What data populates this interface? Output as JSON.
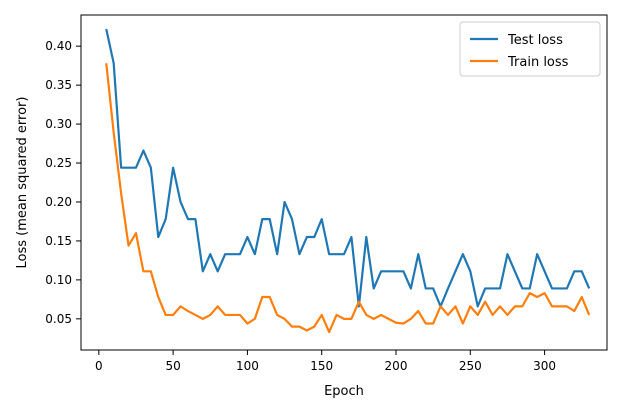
{
  "chart_data": {
    "type": "line",
    "xlabel": "Epoch",
    "ylabel": "Loss (mean squared error)",
    "xlim": [
      -12,
      342
    ],
    "ylim": [
      0.01,
      0.44
    ],
    "xticks": [
      0,
      50,
      100,
      150,
      200,
      250,
      300
    ],
    "xtick_labels": [
      "0",
      "50",
      "100",
      "150",
      "200",
      "250",
      "300"
    ],
    "yticks": [
      0.05,
      0.1,
      0.15,
      0.2,
      0.25,
      0.3,
      0.35,
      0.4
    ],
    "ytick_labels": [
      "0.05",
      "0.10",
      "0.15",
      "0.20",
      "0.25",
      "0.30",
      "0.35",
      "0.40"
    ],
    "grid": false,
    "legend_position": "top-right",
    "x": [
      5,
      10,
      15,
      20,
      25,
      30,
      35,
      40,
      45,
      50,
      55,
      60,
      65,
      70,
      75,
      80,
      85,
      90,
      95,
      100,
      105,
      110,
      115,
      120,
      125,
      130,
      135,
      140,
      145,
      150,
      155,
      160,
      165,
      170,
      175,
      180,
      185,
      190,
      195,
      200,
      205,
      210,
      215,
      220,
      225,
      230,
      235,
      240,
      245,
      250,
      255,
      260,
      265,
      270,
      275,
      280,
      285,
      290,
      295,
      300,
      305,
      310,
      315,
      320,
      325,
      330
    ],
    "series": [
      {
        "name": "Test loss",
        "color": "#1f77b4",
        "values": [
          0.422,
          0.378,
          0.244,
          0.244,
          0.244,
          0.266,
          0.244,
          0.155,
          0.178,
          0.244,
          0.2,
          0.178,
          0.178,
          0.111,
          0.133,
          0.111,
          0.133,
          0.133,
          0.133,
          0.155,
          0.133,
          0.178,
          0.178,
          0.133,
          0.2,
          0.178,
          0.133,
          0.155,
          0.155,
          0.178,
          0.133,
          0.133,
          0.133,
          0.155,
          0.066,
          0.155,
          0.089,
          0.111,
          0.111,
          0.111,
          0.111,
          0.089,
          0.133,
          0.089,
          0.089,
          0.066,
          0.089,
          0.111,
          0.133,
          0.111,
          0.066,
          0.089,
          0.089,
          0.089,
          0.133,
          0.111,
          0.089,
          0.089,
          0.133,
          0.111,
          0.089,
          0.089,
          0.089,
          0.111,
          0.111,
          0.089
        ]
      },
      {
        "name": "Train loss",
        "color": "#ff7f0e",
        "values": [
          0.378,
          0.289,
          0.211,
          0.144,
          0.16,
          0.111,
          0.111,
          0.078,
          0.055,
          0.055,
          0.066,
          0.06,
          0.055,
          0.05,
          0.055,
          0.066,
          0.055,
          0.055,
          0.055,
          0.044,
          0.05,
          0.078,
          0.078,
          0.055,
          0.05,
          0.04,
          0.04,
          0.035,
          0.04,
          0.055,
          0.033,
          0.055,
          0.05,
          0.05,
          0.072,
          0.055,
          0.05,
          0.055,
          0.05,
          0.045,
          0.044,
          0.05,
          0.06,
          0.044,
          0.044,
          0.066,
          0.055,
          0.066,
          0.044,
          0.066,
          0.055,
          0.072,
          0.055,
          0.066,
          0.055,
          0.066,
          0.066,
          0.083,
          0.078,
          0.083,
          0.066,
          0.066,
          0.066,
          0.06,
          0.078,
          0.055
        ]
      }
    ]
  }
}
